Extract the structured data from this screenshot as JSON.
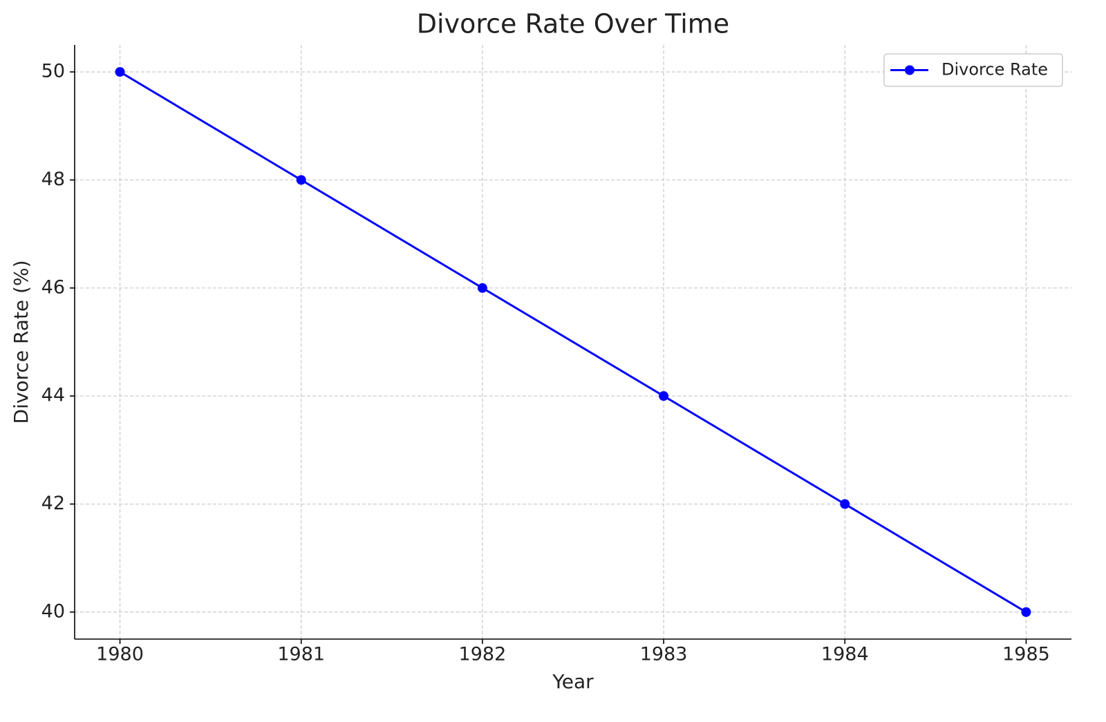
{
  "chart_data": {
    "type": "line",
    "title": "Divorce Rate Over Time",
    "x_label": "Year",
    "y_label": "Divorce Rate (%)",
    "x": [
      1980,
      1981,
      1982,
      1983,
      1984,
      1985
    ],
    "series": [
      {
        "name": "Divorce Rate",
        "color": "#0000ff",
        "values": [
          50,
          48,
          46,
          44,
          42,
          40
        ]
      }
    ],
    "xlim": [
      1979.75,
      1985.25
    ],
    "xticks": [
      1980,
      1981,
      1982,
      1983,
      1984,
      1985
    ],
    "ylim": [
      39.5,
      50.5
    ],
    "yticks": [
      40,
      42,
      44,
      46,
      48,
      50
    ],
    "grid": true,
    "legend": "upper right",
    "marker": "circle"
  }
}
